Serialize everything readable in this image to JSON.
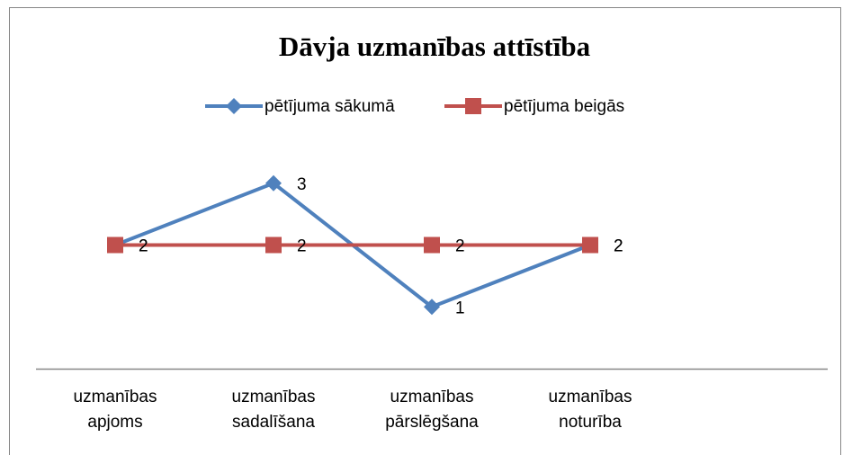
{
  "chart_data": {
    "type": "line",
    "title": "Dāvja uzmanības attīstība",
    "categories": [
      "uzmanības apjoms",
      "uzmanības sadalīšana",
      "uzmanības pārslēgšana",
      "uzmanības noturība"
    ],
    "series": [
      {
        "name": "pētījuma sākumā",
        "color": "#4f81bd",
        "marker": "diamond",
        "values": [
          2,
          3,
          1,
          2
        ]
      },
      {
        "name": "pētījuma beigās",
        "color": "#c0504d",
        "marker": "square",
        "values": [
          2,
          2,
          2,
          2
        ]
      }
    ],
    "ylim": [
      0,
      4
    ],
    "legend": "top",
    "grid": false
  }
}
